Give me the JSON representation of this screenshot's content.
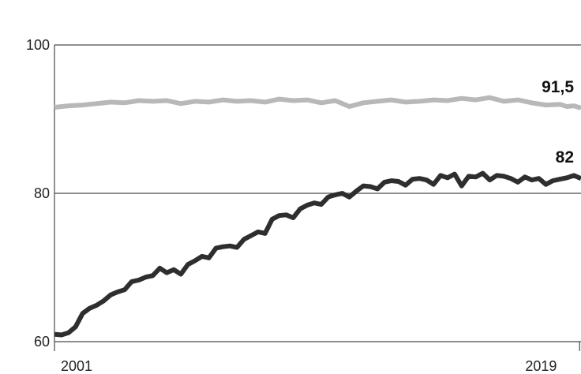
{
  "chart_data": {
    "type": "line",
    "title": "",
    "xlabel": "",
    "ylabel": "",
    "ylim": [
      60,
      100
    ],
    "xlim": [
      2001,
      2019.75
    ],
    "y_ticks": [
      {
        "value": 100,
        "label": "100"
      },
      {
        "value": 80,
        "label": "80"
      },
      {
        "value": 60,
        "label": "60"
      }
    ],
    "x_ticks": [
      {
        "value": 2001,
        "label": "2001"
      },
      {
        "value": 2019,
        "label": "2019"
      }
    ],
    "grid": true,
    "legend": "none",
    "series": [
      {
        "color": "#b8b8b8",
        "end_label": "91,5",
        "points": [
          [
            2001.0,
            91.6
          ],
          [
            2001.5,
            91.8
          ],
          [
            2002.0,
            91.9
          ],
          [
            2002.5,
            92.1
          ],
          [
            2003.0,
            92.3
          ],
          [
            2003.5,
            92.2
          ],
          [
            2004.0,
            92.5
          ],
          [
            2004.5,
            92.4
          ],
          [
            2005.0,
            92.5
          ],
          [
            2005.5,
            92.1
          ],
          [
            2006.0,
            92.4
          ],
          [
            2006.5,
            92.3
          ],
          [
            2007.0,
            92.6
          ],
          [
            2007.5,
            92.4
          ],
          [
            2008.0,
            92.5
          ],
          [
            2008.5,
            92.3
          ],
          [
            2009.0,
            92.7
          ],
          [
            2009.5,
            92.5
          ],
          [
            2010.0,
            92.6
          ],
          [
            2010.5,
            92.2
          ],
          [
            2011.0,
            92.5
          ],
          [
            2011.5,
            91.7
          ],
          [
            2012.0,
            92.2
          ],
          [
            2012.5,
            92.4
          ],
          [
            2013.0,
            92.6
          ],
          [
            2013.5,
            92.3
          ],
          [
            2014.0,
            92.4
          ],
          [
            2014.5,
            92.6
          ],
          [
            2015.0,
            92.5
          ],
          [
            2015.5,
            92.8
          ],
          [
            2016.0,
            92.6
          ],
          [
            2016.5,
            92.9
          ],
          [
            2017.0,
            92.4
          ],
          [
            2017.5,
            92.6
          ],
          [
            2018.0,
            92.2
          ],
          [
            2018.5,
            91.9
          ],
          [
            2019.0,
            92.0
          ],
          [
            2019.25,
            91.7
          ],
          [
            2019.5,
            91.8
          ],
          [
            2019.75,
            91.5
          ]
        ]
      },
      {
        "color": "#2e2e2e",
        "end_label": "82",
        "points": [
          [
            2001.0,
            61.0
          ],
          [
            2001.25,
            60.9
          ],
          [
            2001.5,
            61.2
          ],
          [
            2001.75,
            62.0
          ],
          [
            2002.0,
            63.8
          ],
          [
            2002.25,
            64.5
          ],
          [
            2002.5,
            64.9
          ],
          [
            2002.75,
            65.5
          ],
          [
            2003.0,
            66.3
          ],
          [
            2003.25,
            66.7
          ],
          [
            2003.5,
            67.0
          ],
          [
            2003.75,
            68.1
          ],
          [
            2004.0,
            68.3
          ],
          [
            2004.25,
            68.7
          ],
          [
            2004.5,
            68.9
          ],
          [
            2004.75,
            69.9
          ],
          [
            2005.0,
            69.3
          ],
          [
            2005.25,
            69.7
          ],
          [
            2005.5,
            69.1
          ],
          [
            2005.75,
            70.4
          ],
          [
            2006.0,
            70.9
          ],
          [
            2006.25,
            71.5
          ],
          [
            2006.5,
            71.3
          ],
          [
            2006.75,
            72.6
          ],
          [
            2007.0,
            72.8
          ],
          [
            2007.25,
            72.9
          ],
          [
            2007.5,
            72.7
          ],
          [
            2007.75,
            73.8
          ],
          [
            2008.0,
            74.3
          ],
          [
            2008.25,
            74.8
          ],
          [
            2008.5,
            74.6
          ],
          [
            2008.75,
            76.5
          ],
          [
            2009.0,
            77.0
          ],
          [
            2009.25,
            77.1
          ],
          [
            2009.5,
            76.7
          ],
          [
            2009.75,
            77.9
          ],
          [
            2010.0,
            78.4
          ],
          [
            2010.25,
            78.7
          ],
          [
            2010.5,
            78.5
          ],
          [
            2010.75,
            79.5
          ],
          [
            2011.0,
            79.8
          ],
          [
            2011.25,
            80.0
          ],
          [
            2011.5,
            79.5
          ],
          [
            2011.75,
            80.3
          ],
          [
            2012.0,
            81.0
          ],
          [
            2012.25,
            80.9
          ],
          [
            2012.5,
            80.6
          ],
          [
            2012.75,
            81.5
          ],
          [
            2013.0,
            81.7
          ],
          [
            2013.25,
            81.6
          ],
          [
            2013.5,
            81.1
          ],
          [
            2013.75,
            81.9
          ],
          [
            2014.0,
            82.0
          ],
          [
            2014.25,
            81.8
          ],
          [
            2014.5,
            81.2
          ],
          [
            2014.75,
            82.4
          ],
          [
            2015.0,
            82.1
          ],
          [
            2015.25,
            82.6
          ],
          [
            2015.5,
            81.0
          ],
          [
            2015.75,
            82.3
          ],
          [
            2016.0,
            82.2
          ],
          [
            2016.25,
            82.7
          ],
          [
            2016.5,
            81.8
          ],
          [
            2016.75,
            82.4
          ],
          [
            2017.0,
            82.3
          ],
          [
            2017.25,
            82.0
          ],
          [
            2017.5,
            81.5
          ],
          [
            2017.75,
            82.2
          ],
          [
            2018.0,
            81.8
          ],
          [
            2018.25,
            82.0
          ],
          [
            2018.5,
            81.2
          ],
          [
            2018.75,
            81.7
          ],
          [
            2019.0,
            81.9
          ],
          [
            2019.25,
            82.1
          ],
          [
            2019.5,
            82.4
          ],
          [
            2019.75,
            82.0
          ]
        ]
      }
    ]
  }
}
